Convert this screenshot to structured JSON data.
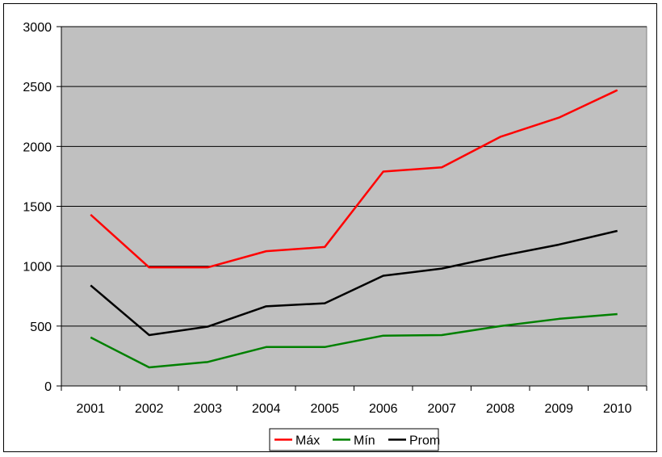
{
  "chart_data": {
    "type": "line",
    "title": "",
    "xlabel": "",
    "ylabel": "",
    "categories": [
      "2001",
      "2002",
      "2003",
      "2004",
      "2005",
      "2006",
      "2007",
      "2008",
      "2009",
      "2010"
    ],
    "ylim": [
      0,
      3000
    ],
    "yticks": [
      "0",
      "500",
      "1000",
      "1500",
      "2000",
      "2500",
      "3000"
    ],
    "grid": "horizontal",
    "legend_position": "bottom",
    "plot_background": "#c0c0c0",
    "series": [
      {
        "name": "Máx",
        "color": "#ff0000",
        "values": [
          1430,
          990,
          990,
          1125,
          1160,
          1790,
          1825,
          2080,
          2240,
          2470
        ]
      },
      {
        "name": "Mín",
        "color": "#008000",
        "values": [
          405,
          155,
          200,
          325,
          325,
          420,
          425,
          500,
          560,
          600
        ]
      },
      {
        "name": "Prom",
        "color": "#000000",
        "values": [
          840,
          425,
          495,
          665,
          690,
          920,
          980,
          1085,
          1180,
          1295
        ]
      }
    ]
  }
}
